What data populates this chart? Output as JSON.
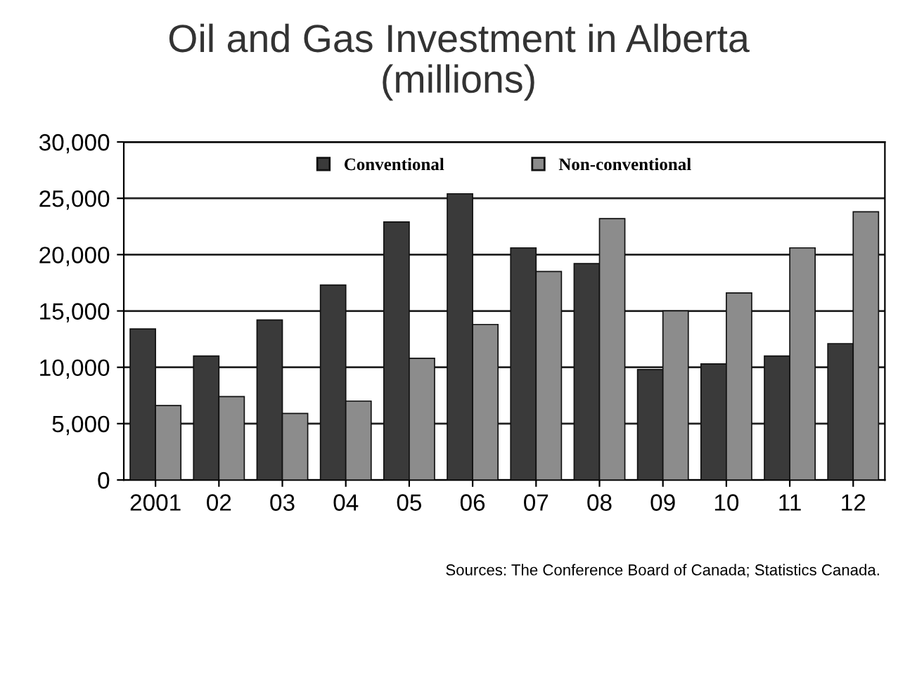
{
  "chart_data": {
    "type": "bar",
    "title": "Oil and Gas Investment in Alberta\n(millions)",
    "categories": [
      "2001",
      "02",
      "03",
      "04",
      "05",
      "06",
      "07",
      "08",
      "09",
      "10",
      "11",
      "12"
    ],
    "series": [
      {
        "name": "Conventional",
        "color": "#3a3a3a",
        "values": [
          13400,
          11000,
          14200,
          17300,
          22900,
          25400,
          20600,
          19200,
          9800,
          10300,
          11000,
          12100
        ]
      },
      {
        "name": "Non-conventional",
        "color": "#8c8c8c",
        "values": [
          6600,
          7400,
          5900,
          7000,
          10800,
          13800,
          18500,
          23200,
          15000,
          16600,
          20600,
          23800
        ]
      }
    ],
    "ylim": [
      0,
      30000
    ],
    "yticks": [
      {
        "value": 0,
        "label": "0"
      },
      {
        "value": 5000,
        "label": "5,000"
      },
      {
        "value": 10000,
        "label": "10,000"
      },
      {
        "value": 15000,
        "label": "15,000"
      },
      {
        "value": 20000,
        "label": "20,000"
      },
      {
        "value": 25000,
        "label": "25,000"
      },
      {
        "value": 30000,
        "label": "30,000"
      }
    ],
    "grid": "y",
    "legend": "top",
    "annotations": [
      "Sources: The Conference Board of Canada; Statistics Canada."
    ]
  }
}
